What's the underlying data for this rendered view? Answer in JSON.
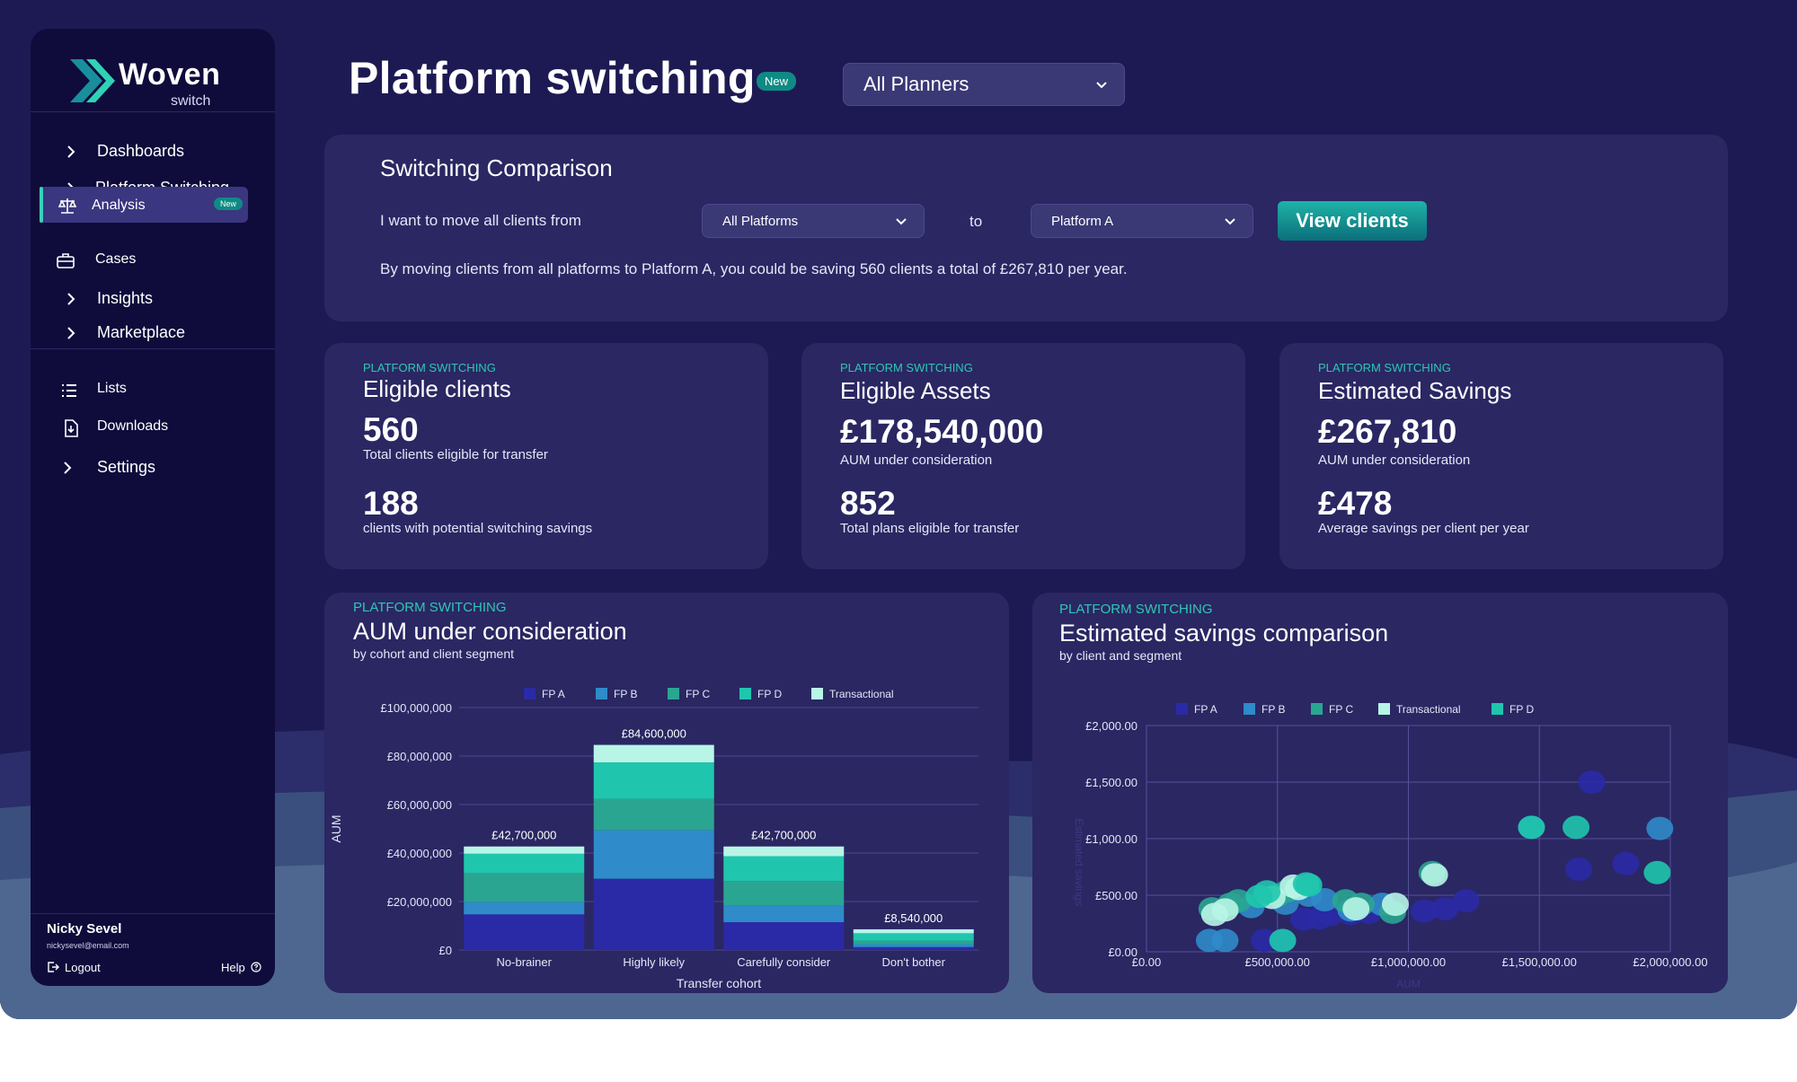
{
  "sidebar": {
    "brand": "Woven",
    "brand_sub": "switch",
    "nav": [
      {
        "label": "Dashboards",
        "icon": "chevron-right-icon"
      },
      {
        "label": "Platform Switching",
        "icon": "chevron-right-icon"
      },
      {
        "label": "Analysis",
        "icon": "scales-icon",
        "badge": "New",
        "active": true
      },
      {
        "label": "Cases",
        "icon": "briefcase-icon"
      },
      {
        "label": "Insights",
        "icon": "chevron-right-icon"
      },
      {
        "label": "Marketplace",
        "icon": "chevron-right-icon"
      }
    ],
    "nav2": [
      {
        "label": "Lists",
        "icon": "list-icon"
      },
      {
        "label": "Downloads",
        "icon": "download-icon"
      },
      {
        "label": "Settings",
        "icon": "chevron-right-icon"
      }
    ],
    "user_name": "Nicky Sevel",
    "user_email": "nickysevel@email.com",
    "logout": "Logout",
    "help": "Help"
  },
  "header": {
    "title": "Platform switching",
    "badge": "New",
    "planner_select": "All Planners"
  },
  "comparison": {
    "title": "Switching Comparison",
    "prompt": "I want to move all clients from",
    "from_select": "All Platforms",
    "to_label": "to",
    "to_select": "Platform A",
    "button": "View clients",
    "summary": "By moving clients from all platforms to Platform A, you could be saving 560 clients a total of £267,810 per year."
  },
  "stats": [
    {
      "eyebrow": "PLATFORM SWITCHING",
      "title": "Eligible clients",
      "big1": "560",
      "sub1": "Total clients eligible for transfer",
      "big2": "188",
      "sub2": "clients with potential switching savings"
    },
    {
      "eyebrow": "PLATFORM SWITCHING",
      "title": "Eligible Assets",
      "big1": "£178,540,000",
      "sub1": "AUM under consideration",
      "big2": "852",
      "sub2": "Total plans eligible for transfer"
    },
    {
      "eyebrow": "PLATFORM SWITCHING",
      "title": "Estimated Savings",
      "big1": "£267,810",
      "sub1": "AUM under consideration",
      "big2": "£478",
      "sub2": "Average savings per client per year"
    }
  ],
  "colors": {
    "fp_a": "#2a2aa6",
    "fp_b": "#2f8bc9",
    "fp_c": "#2aa591",
    "fp_d": "#1fc6ad",
    "transactional": "#b8f5e6",
    "accent": "#2fc7b3"
  },
  "chart_data": [
    {
      "type": "bar",
      "eyebrow": "PLATFORM SWITCHING",
      "title": "AUM under consideration",
      "subtitle": "by cohort and client segment",
      "xlabel": "Transfer cohort",
      "ylabel": "AUM",
      "ylim": [
        0,
        100000000
      ],
      "yticks": [
        "£0",
        "£20,000,000",
        "£40,000,000",
        "£60,000,000",
        "£80,000,000",
        "£100,000,000"
      ],
      "legend": [
        "FP A",
        "FP B",
        "FP C",
        "FP D",
        "Transactional"
      ],
      "legend_position": "top",
      "categories": [
        "No-brainer",
        "Highly likely",
        "Carefully consider",
        "Don't bother"
      ],
      "series": [
        {
          "name": "FP A",
          "values": [
            14700000,
            29400000,
            11500000,
            1200000
          ]
        },
        {
          "name": "FP B",
          "values": [
            5000000,
            20000000,
            7000000,
            1200000
          ]
        },
        {
          "name": "FP C",
          "values": [
            12000000,
            13000000,
            10000000,
            1500000
          ]
        },
        {
          "name": "FP D",
          "values": [
            8000000,
            15000000,
            10200000,
            3000000
          ]
        },
        {
          "name": "Transactional",
          "values": [
            3000000,
            7200000,
            4000000,
            1640000
          ]
        }
      ],
      "totals": [
        "£42,700,000",
        "£84,600,000",
        "£42,700,000",
        "£8,540,000"
      ],
      "total_values": [
        42700000,
        84600000,
        42700000,
        8540000
      ]
    },
    {
      "type": "scatter",
      "eyebrow": "PLATFORM SWITCHING",
      "title": "Estimated savings comparison",
      "subtitle": "by client and segment",
      "xlabel": "AUM",
      "ylabel": "Estimated savings",
      "xlim": [
        0,
        2000000
      ],
      "ylim": [
        0,
        2000
      ],
      "xticks": [
        "£0.00",
        "£500,000.00",
        "£1,000,000.00",
        "£1,500,000.00",
        "£2,000,000.00"
      ],
      "yticks": [
        "£0.00",
        "£500.00",
        "£1,000.00",
        "£1,500.00",
        "£2,000.00"
      ],
      "legend": [
        "FP A",
        "FP B",
        "FP C",
        "Transactional",
        "FP D"
      ],
      "legend_position": "top",
      "series": [
        {
          "name": "FP A",
          "points": [
            [
              450000,
              100
            ],
            [
              520000,
              100
            ],
            [
              600000,
              290
            ],
            [
              660000,
              300
            ],
            [
              700000,
              330
            ],
            [
              780000,
              340
            ],
            [
              850000,
              350
            ],
            [
              1060000,
              360
            ],
            [
              1140000,
              380
            ],
            [
              1220000,
              450
            ],
            [
              1650000,
              730
            ],
            [
              1700000,
              1500
            ],
            [
              1830000,
              780
            ]
          ]
        },
        {
          "name": "FP B",
          "points": [
            [
              240000,
              100
            ],
            [
              300000,
              100
            ],
            [
              400000,
              400
            ],
            [
              530000,
              430
            ],
            [
              620000,
              500
            ],
            [
              680000,
              460
            ],
            [
              780000,
              370
            ],
            [
              900000,
              420
            ],
            [
              1470000,
              1100
            ],
            [
              1960000,
              1090
            ]
          ]
        },
        {
          "name": "FP C",
          "points": [
            [
              1090000,
              700
            ],
            [
              250000,
              380
            ],
            [
              320000,
              420
            ],
            [
              350000,
              450
            ],
            [
              500000,
              500
            ],
            [
              540000,
              540
            ],
            [
              760000,
              450
            ],
            [
              820000,
              420
            ],
            [
              940000,
              350
            ]
          ]
        },
        {
          "name": "Transactional",
          "points": [
            [
              1100000,
              680
            ],
            [
              800000,
              380
            ],
            [
              260000,
              330
            ],
            [
              300000,
              370
            ],
            [
              480000,
              480
            ],
            [
              580000,
              560
            ],
            [
              950000,
              420
            ],
            [
              560000,
              580
            ]
          ]
        },
        {
          "name": "FP D",
          "points": [
            [
              1470000,
              1100
            ],
            [
              1640000,
              1100
            ],
            [
              1950000,
              700
            ],
            [
              520000,
              100
            ],
            [
              430000,
              490
            ],
            [
              610000,
              600
            ],
            [
              460000,
              530
            ],
            [
              620000,
              590
            ]
          ]
        }
      ]
    }
  ]
}
